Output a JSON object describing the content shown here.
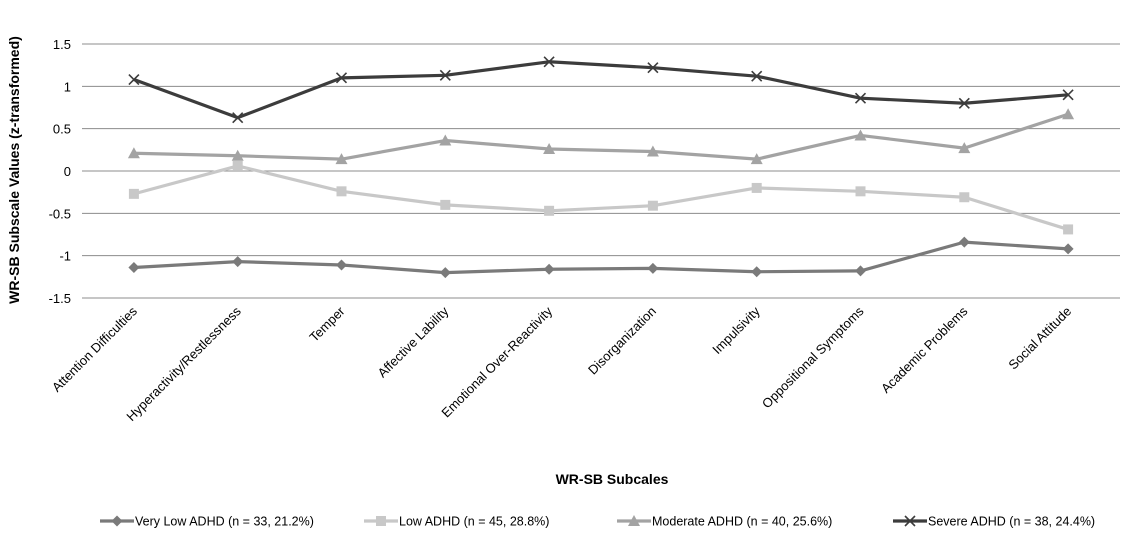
{
  "chart_data": {
    "type": "line",
    "title": "",
    "xlabel": "WR-SB Subcales",
    "ylabel": "WR-SB Subscale Values (z-transformed)",
    "ylim": [
      -1.5,
      1.5
    ],
    "yticks": [
      "1.5",
      "1",
      "0.5",
      "0",
      "-0.5",
      "-1",
      "-1.5"
    ],
    "ytick_values": [
      1.5,
      1,
      0.5,
      0,
      -0.5,
      -1,
      -1.5
    ],
    "grid": "horizontal",
    "legend_position": "bottom",
    "categories": [
      "Attention Difficulties",
      "Hyperactivity/Restlessness",
      "Temper",
      "Affective Lability",
      "Emotional Over-Reactivity",
      "Disorganization",
      "Impulsivity",
      "Oppositional Symptoms",
      "Academic Problems",
      "Social Attitude"
    ],
    "series": [
      {
        "name": "Very Low ADHD (n = 33, 21.2%)",
        "marker": "diamond",
        "color": "#7a7a7a",
        "values": [
          -1.14,
          -1.07,
          -1.11,
          -1.2,
          -1.16,
          -1.15,
          -1.19,
          -1.18,
          -0.84,
          -0.92
        ]
      },
      {
        "name": "Low ADHD (n = 45, 28.8%)",
        "marker": "square",
        "color": "#c8c8c8",
        "values": [
          -0.27,
          0.06,
          -0.24,
          -0.4,
          -0.47,
          -0.41,
          -0.2,
          -0.24,
          -0.31,
          -0.69
        ]
      },
      {
        "name": "Moderate ADHD (n = 40, 25.6%)",
        "marker": "triangle",
        "color": "#a3a3a3",
        "values": [
          0.21,
          0.18,
          0.14,
          0.36,
          0.26,
          0.23,
          0.14,
          0.42,
          0.27,
          0.67
        ]
      },
      {
        "name": "Severe ADHD (n = 38, 24.4%)",
        "marker": "x",
        "color": "#3c3c3c",
        "values": [
          1.08,
          0.63,
          1.1,
          1.13,
          1.29,
          1.22,
          1.12,
          0.86,
          0.8,
          0.9
        ]
      }
    ]
  }
}
